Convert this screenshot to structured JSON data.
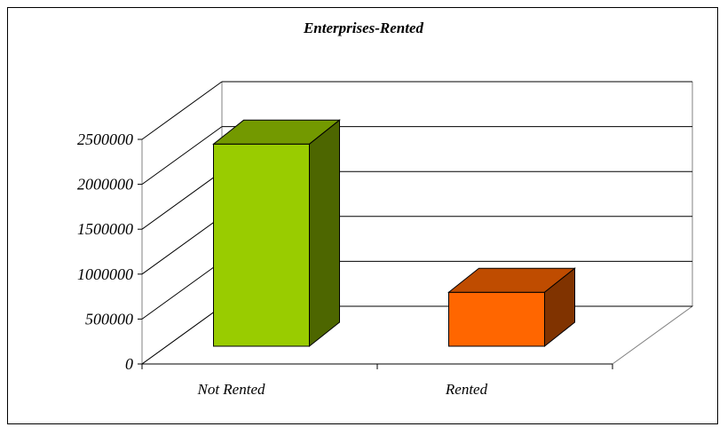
{
  "chart_data": {
    "type": "bar",
    "title": "Enterprises-Rented",
    "categories": [
      "Not Rented",
      "Rented"
    ],
    "values": [
      2250000,
      600000
    ],
    "ylim": [
      0,
      2500000
    ],
    "yticks": [
      0,
      500000,
      1000000,
      1500000,
      2000000,
      2500000
    ],
    "xlabel": "",
    "ylabel": "",
    "grid": true,
    "style": "3d",
    "colors": {
      "bar_front": [
        "#99cc00",
        "#ff6600"
      ],
      "bar_top": [
        "#739900",
        "#bf4c00"
      ],
      "bar_side": [
        "#4d6600",
        "#803300"
      ]
    }
  }
}
